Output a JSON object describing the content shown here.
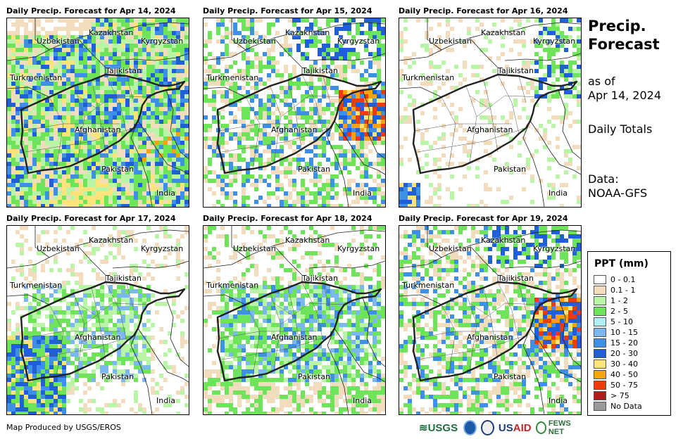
{
  "panels": [
    {
      "title": "Daily Precip. Forecast for Apr 14, 2024",
      "intensity": "high"
    },
    {
      "title": "Daily Precip. Forecast for Apr 15, 2024",
      "intensity": "medium-east"
    },
    {
      "title": "Daily Precip. Forecast for Apr 16, 2024",
      "intensity": "low"
    },
    {
      "title": "Daily Precip. Forecast for Apr 17, 2024",
      "intensity": "west"
    },
    {
      "title": "Daily Precip. Forecast for Apr 18, 2024",
      "intensity": "medium"
    },
    {
      "title": "Daily Precip. Forecast for Apr 19, 2024",
      "intensity": "medium-east"
    }
  ],
  "map_labels": {
    "uzbekistan": "Uzbekistan",
    "kazakhstan": "Kazakhstan",
    "kyrgyzstan": "Kyrgyzstan",
    "tajikistan": "Tajikistan",
    "turkmenistan": "Turkmenistan",
    "afghanistan": "Afghanistan",
    "pakistan": "Pakistan",
    "india": "India"
  },
  "side": {
    "title_line1": "Precip.",
    "title_line2": "Forecast",
    "asof_line1": "as of",
    "asof_line2": "Apr 14, 2024",
    "totals": "Daily Totals",
    "data_line1": "Data:",
    "data_line2": "NOAA-GFS"
  },
  "legend": {
    "title": "PPT (mm)",
    "items": [
      {
        "label": "0 - 0.1",
        "color": "#ffffff"
      },
      {
        "label": "0.1 - 1",
        "color": "#f1dcbd"
      },
      {
        "label": "1 - 2",
        "color": "#b9f5a6"
      },
      {
        "label": "2 - 5",
        "color": "#6ee45a"
      },
      {
        "label": "5 - 10",
        "color": "#b0f0f4"
      },
      {
        "label": "10 - 15",
        "color": "#7ab8ef"
      },
      {
        "label": "15 - 20",
        "color": "#3e8fe6"
      },
      {
        "label": "20 - 30",
        "color": "#1f5fd8"
      },
      {
        "label": "30 - 40",
        "color": "#fde37a"
      },
      {
        "label": "40 - 50",
        "color": "#f7a30b"
      },
      {
        "label": "50 - 75",
        "color": "#ef3b0c"
      },
      {
        "label": "> 75",
        "color": "#b01c1c"
      },
      {
        "label": "No Data",
        "color": "#999999"
      }
    ]
  },
  "footer": "Map Produced by USGS/EROS",
  "logos": {
    "usgs": "≋USGS",
    "usaid_a": "US",
    "usaid_b": "AID",
    "fews": "FEWS NET"
  }
}
